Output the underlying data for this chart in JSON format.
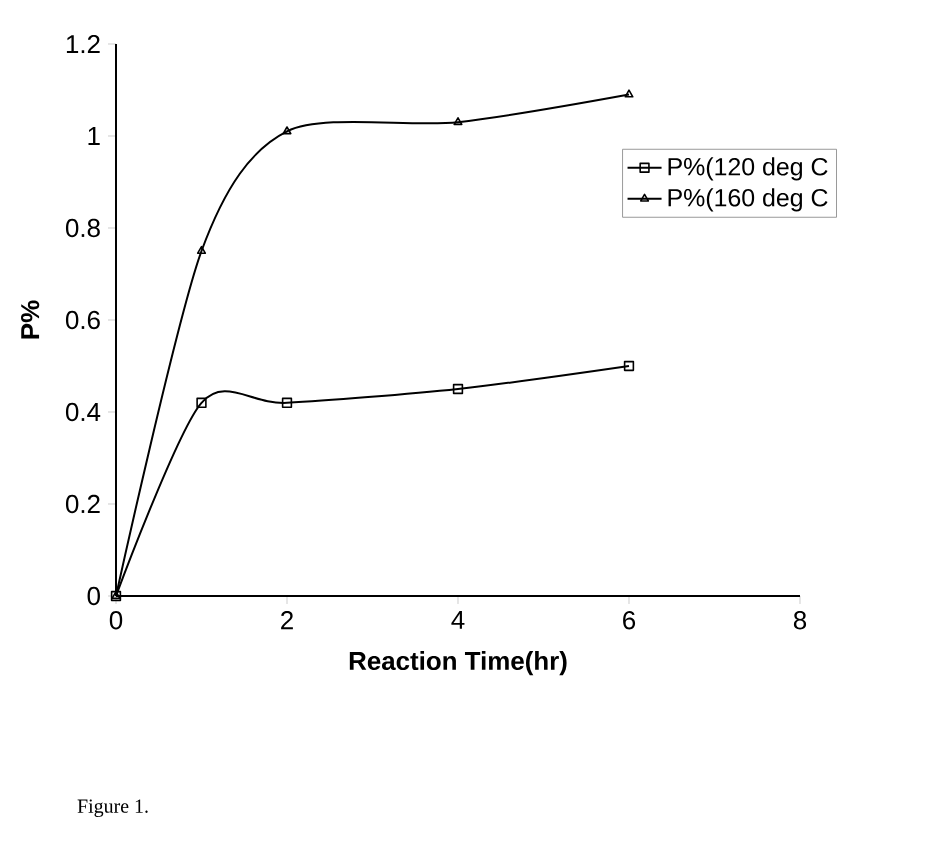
{
  "chart_data": {
    "type": "line",
    "xlabel": "Reaction Time(hr)",
    "ylabel": "P%",
    "x": [
      0,
      1,
      2,
      4,
      6
    ],
    "series": [
      {
        "name": "P%(120 deg C",
        "color": "#000000",
        "marker": "square",
        "values": [
          0,
          0.42,
          0.42,
          0.45,
          0.5
        ]
      },
      {
        "name": "P%(160 deg C",
        "color": "#000000",
        "marker": "triangle",
        "values": [
          0,
          0.75,
          1.01,
          1.03,
          1.09
        ]
      }
    ],
    "xlim": [
      0,
      8
    ],
    "xticks": [
      0,
      2,
      4,
      6,
      8
    ],
    "ylim": [
      0,
      1.2
    ],
    "yticks": [
      0,
      0.2,
      0.4,
      0.6,
      0.8,
      1,
      1.2
    ],
    "grid": false,
    "legend": "right",
    "line_style": "solid",
    "annotations": [
      "Figure 1."
    ]
  }
}
